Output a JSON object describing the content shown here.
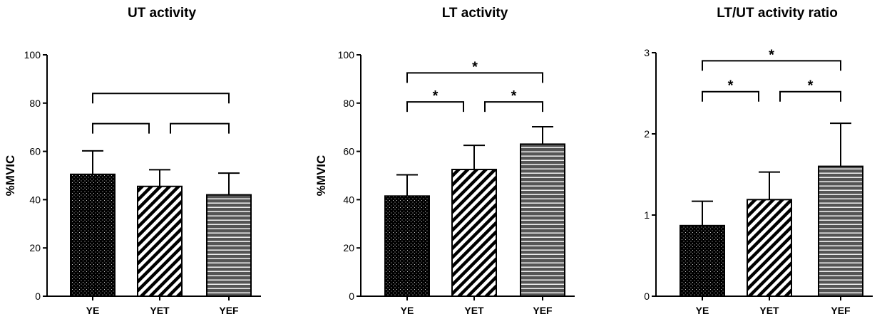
{
  "chart_data": [
    {
      "type": "bar",
      "title": "UT activity",
      "ylabel": "%MVIC",
      "categories": [
        "YE",
        "YET",
        "YEF"
      ],
      "values": [
        50.5,
        45.5,
        42
      ],
      "error_upper": [
        60.2,
        52.4,
        51
      ],
      "ylim": [
        0,
        100
      ],
      "yticks": [
        0,
        20,
        40,
        60,
        80,
        100
      ],
      "ytick_labels": [
        "0",
        "20",
        "40",
        "60",
        "80",
        "100"
      ],
      "significance": [
        {
          "from": 0,
          "to": 1,
          "y": 71.5,
          "label": ""
        },
        {
          "from": 1,
          "to": 2,
          "y": 71.5,
          "label": ""
        },
        {
          "from": 0,
          "to": 2,
          "y": 84,
          "label": ""
        }
      ]
    },
    {
      "type": "bar",
      "title": "LT activity",
      "ylabel": "%MVIC",
      "categories": [
        "YE",
        "YET",
        "YEF"
      ],
      "values": [
        41.5,
        52.5,
        63
      ],
      "error_upper": [
        50.3,
        62.5,
        70.2
      ],
      "ylim": [
        0,
        100
      ],
      "yticks": [
        0,
        20,
        40,
        60,
        80,
        100
      ],
      "ytick_labels": [
        "0",
        "20",
        "40",
        "60",
        "80",
        "100"
      ],
      "significance": [
        {
          "from": 0,
          "to": 1,
          "y": 80.5,
          "label": "*"
        },
        {
          "from": 1,
          "to": 2,
          "y": 80.5,
          "label": "*"
        },
        {
          "from": 0,
          "to": 2,
          "y": 92.5,
          "label": "*"
        }
      ]
    },
    {
      "type": "bar",
      "title": "LT/UT activity ratio",
      "ylabel": "",
      "categories": [
        "YE",
        "YET",
        "YEF"
      ],
      "values": [
        0.87,
        1.19,
        1.6
      ],
      "error_upper": [
        1.17,
        1.53,
        2.13
      ],
      "ylim": [
        0,
        3
      ],
      "yticks": [
        0,
        1,
        2,
        3
      ],
      "ytick_labels": [
        "0",
        "1",
        "2",
        "3"
      ],
      "significance": [
        {
          "from": 0,
          "to": 1,
          "y": 2.52,
          "label": "*"
        },
        {
          "from": 1,
          "to": 2,
          "y": 2.52,
          "label": "*"
        },
        {
          "from": 0,
          "to": 2,
          "y": 2.9,
          "label": "*"
        }
      ]
    }
  ]
}
